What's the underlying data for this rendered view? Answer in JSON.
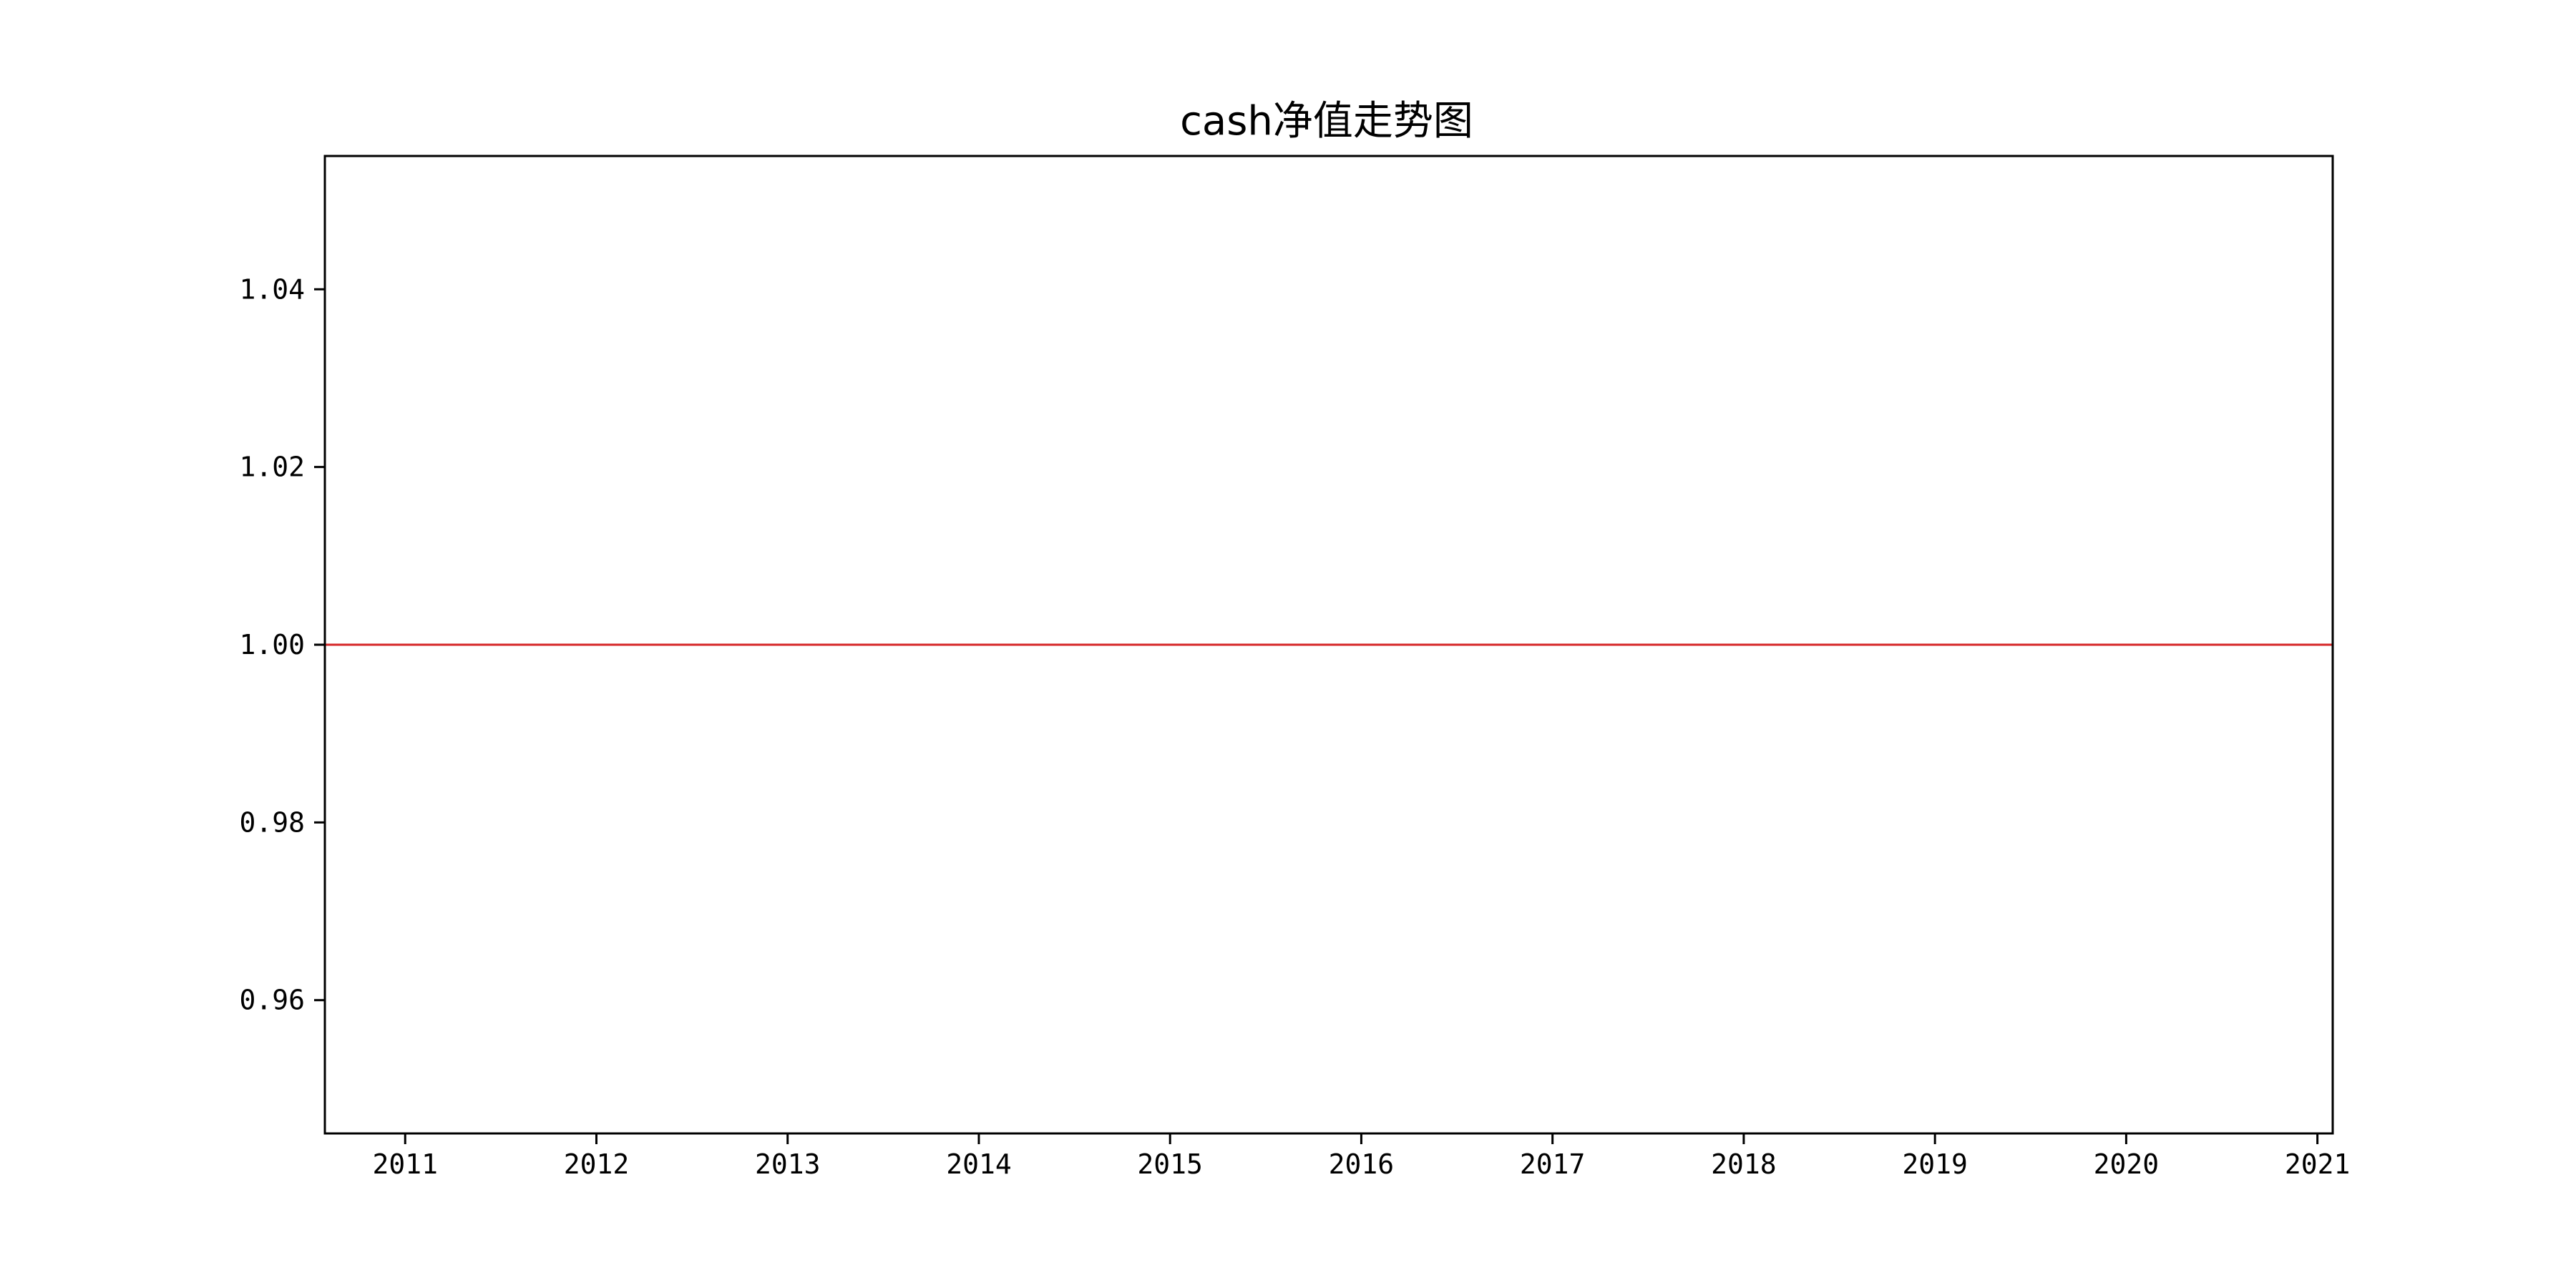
{
  "chart_data": {
    "type": "line",
    "title": "cash净值走势图",
    "xlabel": "",
    "ylabel": "",
    "xlim": [
      2010.58,
      2021.08
    ],
    "ylim": [
      0.945,
      1.055
    ],
    "x_ticks": [
      2011,
      2012,
      2013,
      2014,
      2015,
      2016,
      2017,
      2018,
      2019,
      2020,
      2021
    ],
    "x_tick_labels": [
      "2011",
      "2012",
      "2013",
      "2014",
      "2015",
      "2016",
      "2017",
      "2018",
      "2019",
      "2020",
      "2021"
    ],
    "y_ticks": [
      0.96,
      0.98,
      1.0,
      1.02,
      1.04
    ],
    "y_tick_labels": [
      "0.96",
      "0.98",
      "1.00",
      "1.02",
      "1.04"
    ],
    "grid": false,
    "legend": "none",
    "series": [
      {
        "name": "cash",
        "color": "#d62728",
        "x": [
          2010.58,
          2021.08
        ],
        "values": [
          1.0,
          1.0
        ]
      }
    ]
  }
}
